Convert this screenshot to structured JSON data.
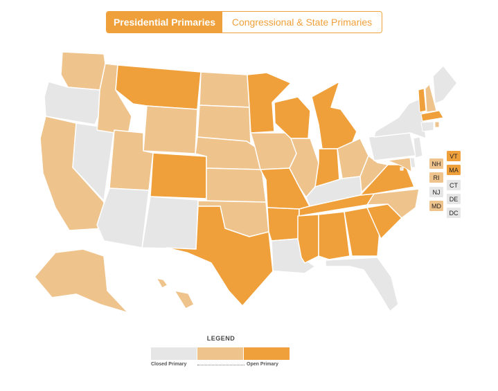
{
  "tabs": {
    "presidential": "Presidential Primaries",
    "congressional": "Congressional & State Primaries"
  },
  "colors": {
    "closed": "#e6e6e6",
    "partial": "#efc38c",
    "open": "#f0a03a",
    "border": "#ffffff"
  },
  "legend": {
    "title": "LEGEND",
    "closed_label": "Closed Primary",
    "open_label": "Open Primary"
  },
  "states": {
    "WA": "partial",
    "OR": "closed",
    "CA": "partial",
    "NV": "closed",
    "ID": "partial",
    "MT": "open",
    "WY": "partial",
    "UT": "partial",
    "AZ": "closed",
    "CO": "open",
    "NM": "closed",
    "ND": "partial",
    "SD": "partial",
    "NE": "partial",
    "KS": "partial",
    "OK": "partial",
    "TX": "open",
    "MN": "open",
    "IA": "partial",
    "MO": "open",
    "AR": "open",
    "LA": "closed",
    "WI": "open",
    "IL": "partial",
    "MI": "open",
    "IN": "open",
    "OH": "partial",
    "KY": "closed",
    "TN": "open",
    "MS": "open",
    "AL": "open",
    "GA": "open",
    "FL": "closed",
    "SC": "open",
    "NC": "partial",
    "VA": "open",
    "WV": "partial",
    "PA": "closed",
    "NY": "closed",
    "ME": "closed",
    "AK": "partial",
    "HI": "partial"
  },
  "small_states": [
    {
      "abbr": "NH",
      "status": "partial"
    },
    {
      "abbr": "VT",
      "status": "open"
    },
    {
      "abbr": "RI",
      "status": "partial"
    },
    {
      "abbr": "MA",
      "status": "open"
    },
    {
      "abbr": "NJ",
      "status": "closed"
    },
    {
      "abbr": "CT",
      "status": "closed"
    },
    {
      "abbr": "MD",
      "status": "partial"
    },
    {
      "abbr": "DE",
      "status": "closed"
    },
    {
      "abbr": "DC",
      "status": "closed"
    }
  ]
}
